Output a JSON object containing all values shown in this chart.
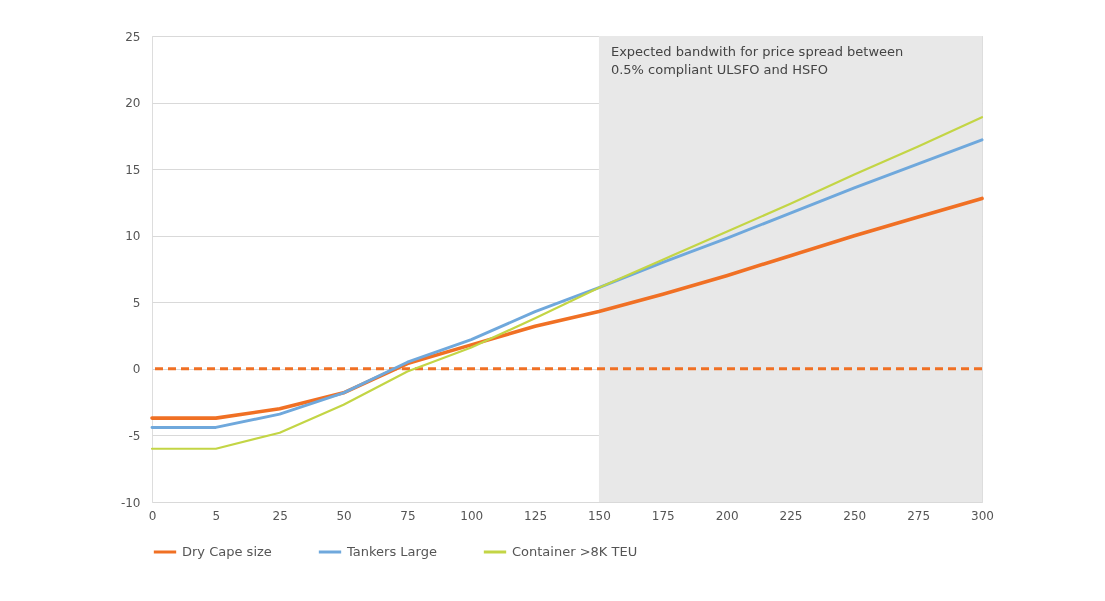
{
  "chart_data": {
    "type": "line",
    "categories": [
      "0",
      "5",
      "25",
      "50",
      "75",
      "100",
      "125",
      "150",
      "175",
      "200",
      "225",
      "250",
      "275",
      "300"
    ],
    "ylim": [
      -10,
      25
    ],
    "yticks": [
      -10,
      -5,
      0,
      5,
      10,
      15,
      20,
      25
    ],
    "grid": "y",
    "legend": "bottom",
    "line_style": "solid",
    "marker": "none",
    "series": [
      {
        "name": "Dry Cape size",
        "color": "#f07024",
        "values": [
          -3.7,
          -3.7,
          -3.0,
          -1.8,
          0.4,
          1.8,
          3.2,
          4.3,
          5.6,
          7.0,
          8.5,
          10.0,
          11.4,
          12.8
        ]
      },
      {
        "name": "Tankers Large",
        "color": "#6fa8dc",
        "values": [
          -4.4,
          -4.4,
          -3.4,
          -1.8,
          0.5,
          2.2,
          4.3,
          6.1,
          8.0,
          9.8,
          11.7,
          13.6,
          15.4,
          17.2
        ]
      },
      {
        "name": "Container >8K TEU",
        "color": "#c3d545",
        "values": [
          -6.0,
          -6.0,
          -4.8,
          -2.7,
          -0.2,
          1.6,
          3.8,
          6.1,
          8.2,
          10.3,
          12.4,
          14.6,
          16.7,
          18.9
        ]
      }
    ],
    "ref_lines": [
      {
        "axis": "y",
        "value": 0,
        "color": "#f07024",
        "line_style": "dashed"
      }
    ],
    "bands": [
      {
        "axis": "x",
        "from": "150",
        "to": "300",
        "color": "#e8e8e8",
        "label": "Expected bandwith for price spread between 0.5% compliant ULSFO and HSFO"
      }
    ]
  }
}
